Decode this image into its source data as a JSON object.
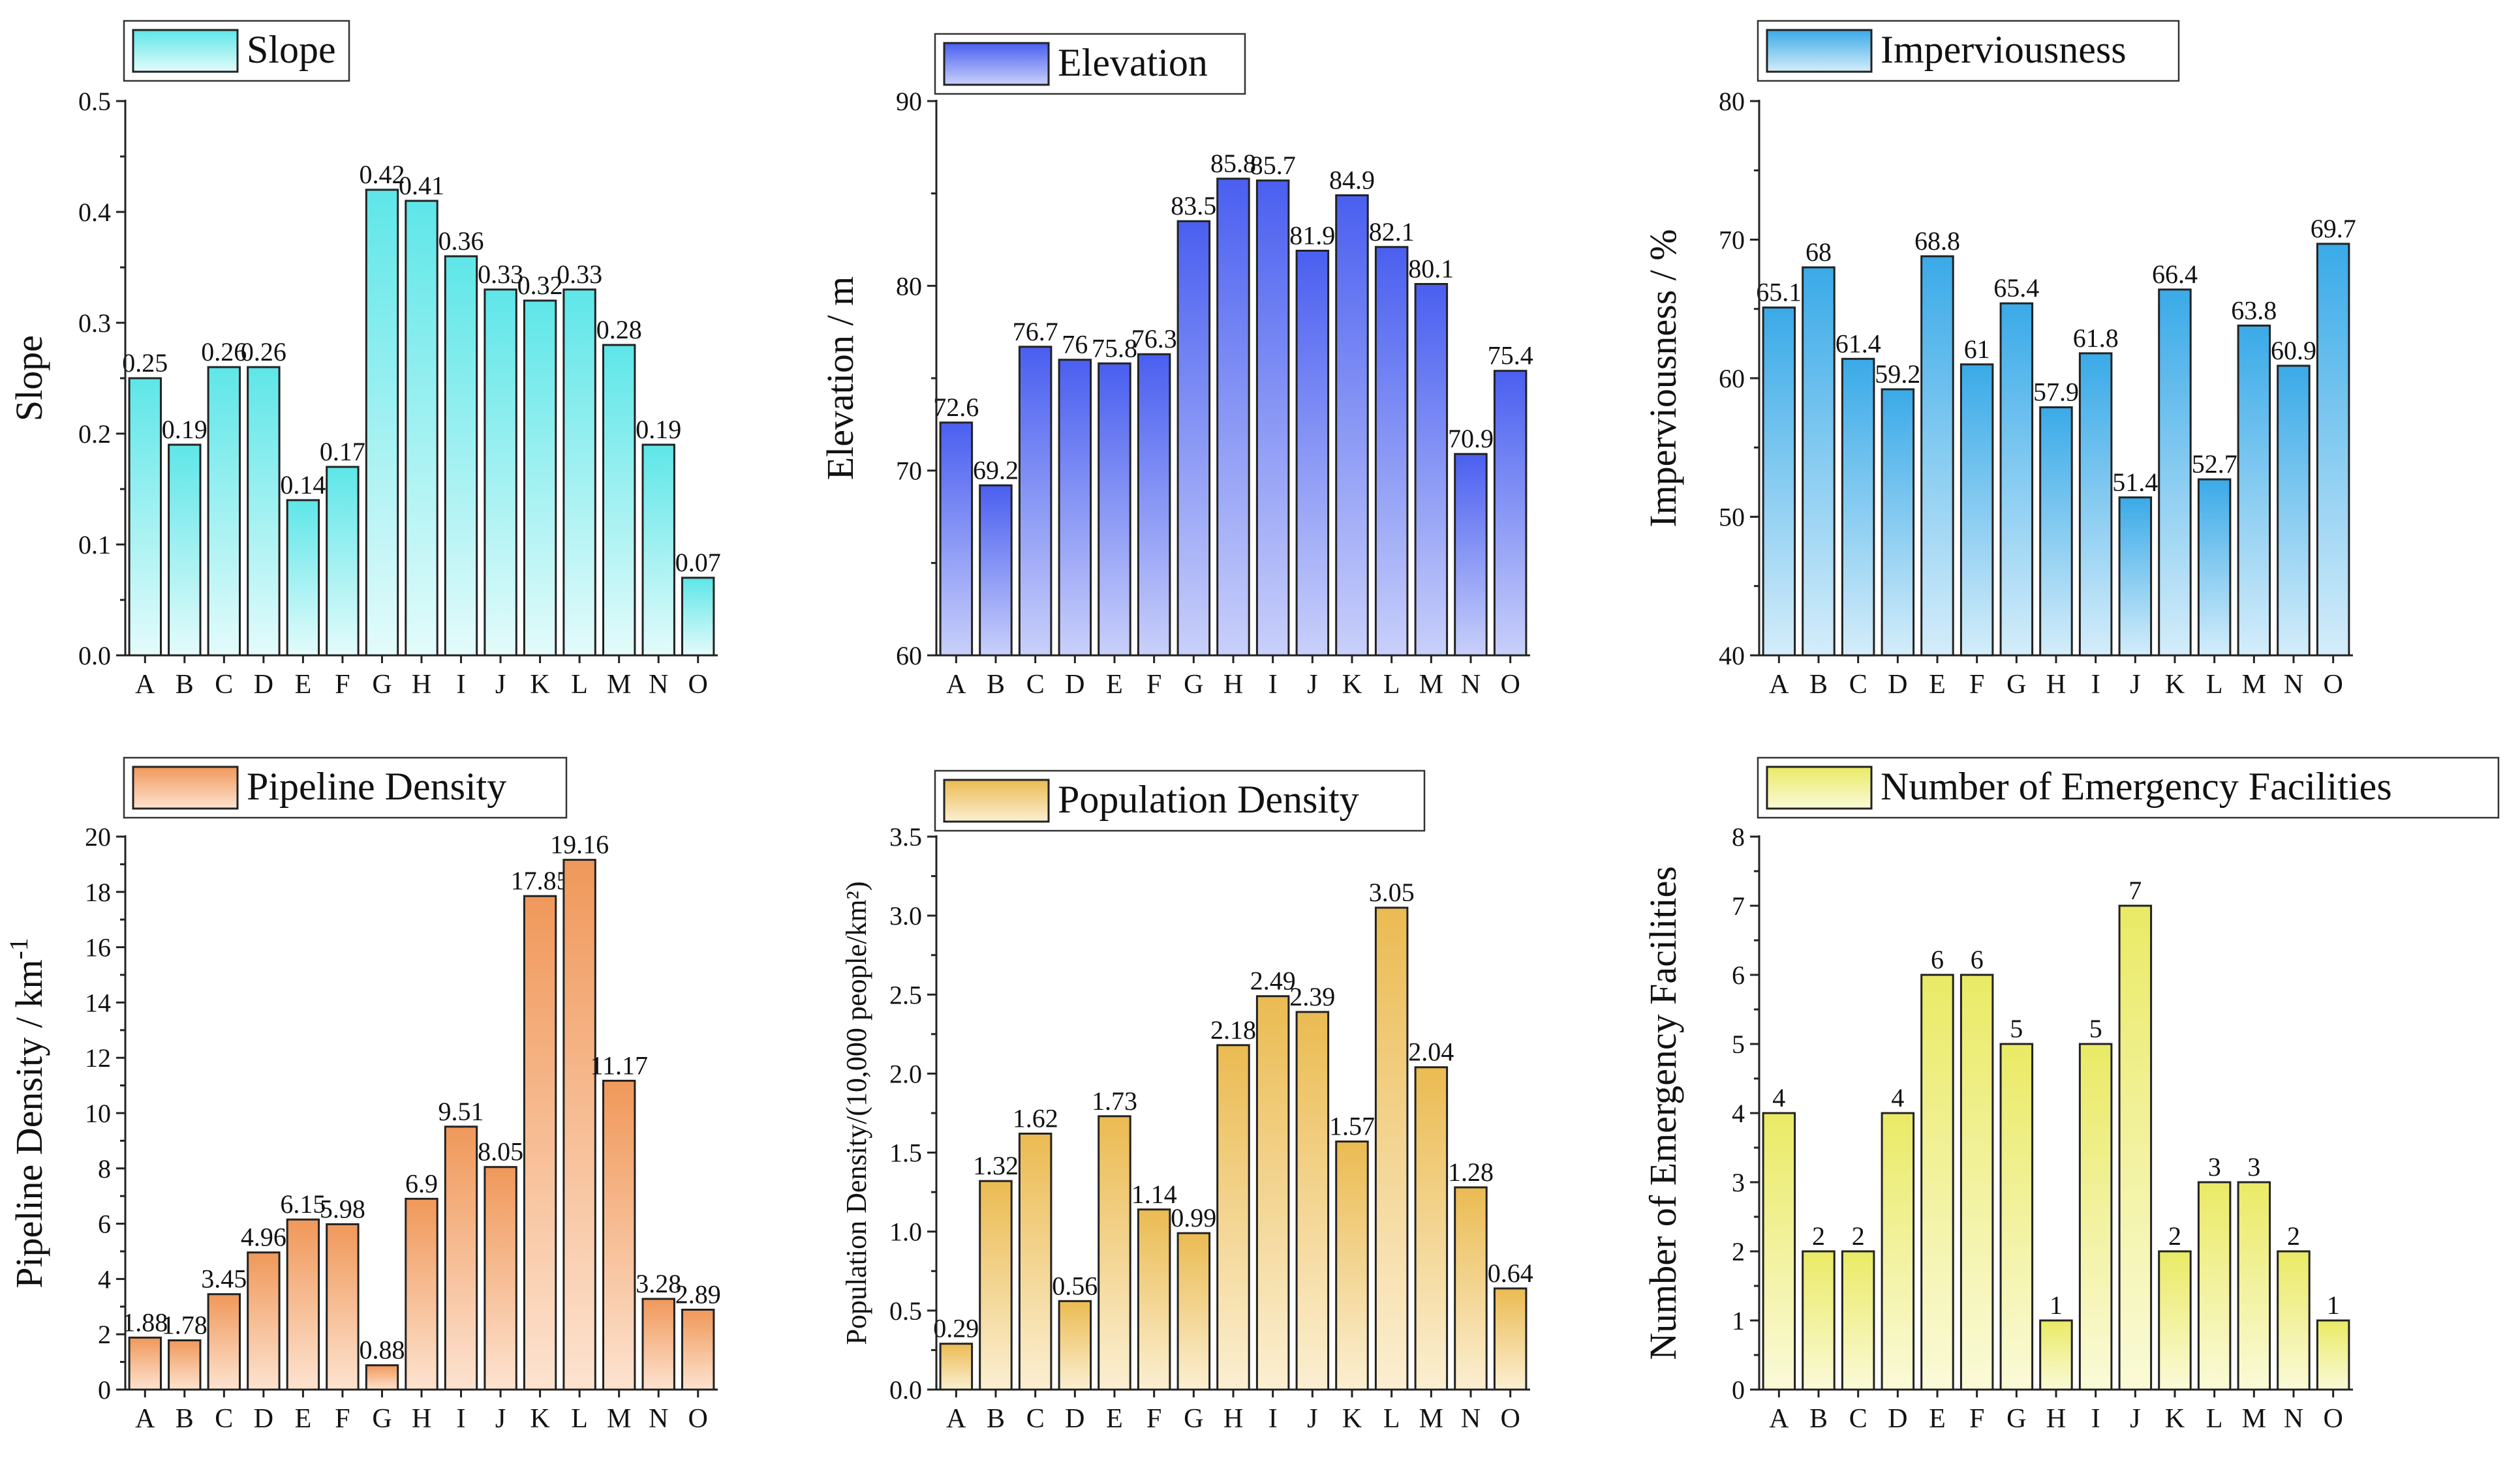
{
  "chart_data": [
    {
      "type": "bar",
      "legend": "Slope",
      "ylabel": "Slope",
      "ylim": [
        0,
        0.5
      ],
      "yticks": [
        0.0,
        0.1,
        0.2,
        0.3,
        0.4,
        0.5
      ],
      "tick_decimals": 1,
      "categories": [
        "A",
        "B",
        "C",
        "D",
        "E",
        "F",
        "G",
        "H",
        "I",
        "J",
        "K",
        "L",
        "M",
        "N",
        "O"
      ],
      "values": [
        0.25,
        0.19,
        0.26,
        0.26,
        0.14,
        0.17,
        0.42,
        0.41,
        0.36,
        0.33,
        0.32,
        0.33,
        0.28,
        0.19,
        0.07
      ],
      "labels": [
        "0.25",
        "0.19",
        "0.26",
        "0.26",
        "0.14",
        "0.17",
        "0.42",
        "0.41",
        "0.36",
        "0.33",
        "0.32",
        "0.33",
        "0.28",
        "0.19",
        "0.07"
      ],
      "color_top": "#5ee6e8",
      "color_bottom": "#e4fbfb",
      "legend_position": "top-left"
    },
    {
      "type": "bar",
      "legend": "Elevation",
      "ylabel": "Elevation / m",
      "ylim": [
        60,
        90
      ],
      "yticks": [
        60,
        70,
        80,
        90
      ],
      "tick_decimals": 0,
      "categories": [
        "A",
        "B",
        "C",
        "D",
        "E",
        "F",
        "G",
        "H",
        "I",
        "J",
        "K",
        "L",
        "M",
        "N",
        "O"
      ],
      "values": [
        72.6,
        69.2,
        76.7,
        76,
        75.8,
        76.3,
        83.5,
        85.8,
        85.7,
        81.9,
        84.9,
        82.1,
        80.1,
        70.9,
        75.4
      ],
      "labels": [
        "72.6",
        "69.2",
        "76.7",
        "76",
        "75.8",
        "76.3",
        "83.5",
        "85.8",
        "85.7",
        "81.9",
        "84.9",
        "82.1",
        "80.1",
        "70.9",
        "75.4"
      ],
      "color_top": "#4a5ff0",
      "color_bottom": "#c9d0fa",
      "legend_position": "top-left"
    },
    {
      "type": "bar",
      "legend": "Imperviousness",
      "ylabel": "Imperviousness / %",
      "ylim": [
        40,
        80
      ],
      "yticks": [
        40,
        50,
        60,
        70,
        80
      ],
      "tick_decimals": 0,
      "categories": [
        "A",
        "B",
        "C",
        "D",
        "E",
        "F",
        "G",
        "H",
        "I",
        "J",
        "K",
        "L",
        "M",
        "N",
        "O"
      ],
      "values": [
        65.1,
        68,
        61.4,
        59.2,
        68.8,
        61,
        65.4,
        57.9,
        61.8,
        51.4,
        66.4,
        52.7,
        63.8,
        60.9,
        69.7
      ],
      "labels": [
        "65.1",
        "68",
        "61.4",
        "59.2",
        "68.8",
        "61",
        "65.4",
        "57.9",
        "61.8",
        "51.4",
        "66.4",
        "52.7",
        "63.8",
        "60.9",
        "69.7"
      ],
      "color_top": "#3aaae8",
      "color_bottom": "#d4edfa",
      "legend_position": "top-left"
    },
    {
      "type": "bar",
      "legend": "Pipeline Density",
      "ylabel": "Pipeline Density / km",
      "ylabel_sup": "-1",
      "ylim": [
        0,
        20
      ],
      "yticks": [
        0,
        2,
        4,
        6,
        8,
        10,
        12,
        14,
        16,
        18,
        20
      ],
      "tick_decimals": 0,
      "categories": [
        "A",
        "B",
        "C",
        "D",
        "E",
        "F",
        "G",
        "H",
        "I",
        "J",
        "K",
        "L",
        "M",
        "N",
        "O"
      ],
      "values": [
        1.88,
        1.78,
        3.45,
        4.96,
        6.15,
        5.98,
        0.88,
        6.9,
        9.51,
        8.05,
        17.85,
        19.16,
        11.17,
        3.28,
        2.89
      ],
      "labels": [
        "1.88",
        "1.78",
        "3.45",
        "4.96",
        "6.15",
        "5.98",
        "0.88",
        "6.9",
        "9.51",
        "8.05",
        "17.85",
        "19.16",
        "11.17",
        "3.28",
        "2.89"
      ],
      "color_top": "#f0985a",
      "color_bottom": "#fde3d0",
      "legend_position": "top-left"
    },
    {
      "type": "bar",
      "legend": "Population Density",
      "ylabel": "Population Density/(10,000 people/km²)",
      "ylim": [
        0,
        3.5
      ],
      "yticks": [
        0.0,
        0.5,
        1.0,
        1.5,
        2.0,
        2.5,
        3.0,
        3.5
      ],
      "tick_decimals": 1,
      "categories": [
        "A",
        "B",
        "C",
        "D",
        "E",
        "F",
        "G",
        "H",
        "I",
        "J",
        "K",
        "L",
        "M",
        "N",
        "O"
      ],
      "values": [
        0.29,
        1.32,
        1.62,
        0.56,
        1.73,
        1.14,
        0.99,
        2.18,
        2.49,
        2.39,
        1.57,
        3.05,
        2.04,
        1.28,
        0.64
      ],
      "labels": [
        "0.29",
        "1.32",
        "1.62",
        "0.56",
        "1.73",
        "1.14",
        "0.99",
        "2.18",
        "2.49",
        "2.39",
        "1.57",
        "3.05",
        "2.04",
        "1.28",
        "0.64"
      ],
      "color_top": "#ebbb52",
      "color_bottom": "#fbefd2",
      "legend_position": "top-left"
    },
    {
      "type": "bar",
      "legend": "Number of Emergency Facilities",
      "ylabel": "Number of Emergency Facilities",
      "ylim": [
        0,
        8
      ],
      "yticks": [
        0,
        1,
        2,
        3,
        4,
        5,
        6,
        7,
        8
      ],
      "tick_decimals": 0,
      "categories": [
        "A",
        "B",
        "C",
        "D",
        "E",
        "F",
        "G",
        "H",
        "I",
        "J",
        "K",
        "L",
        "M",
        "N",
        "O"
      ],
      "values": [
        4,
        2,
        2,
        4,
        6,
        6,
        5,
        1,
        5,
        7,
        2,
        3,
        3,
        2,
        1
      ],
      "labels": [
        "4",
        "2",
        "2",
        "4",
        "6",
        "6",
        "5",
        "1",
        "5",
        "7",
        "2",
        "3",
        "3",
        "2",
        "1"
      ],
      "color_top": "#eaea66",
      "color_bottom": "#fafad8",
      "legend_position": "top-left"
    }
  ]
}
